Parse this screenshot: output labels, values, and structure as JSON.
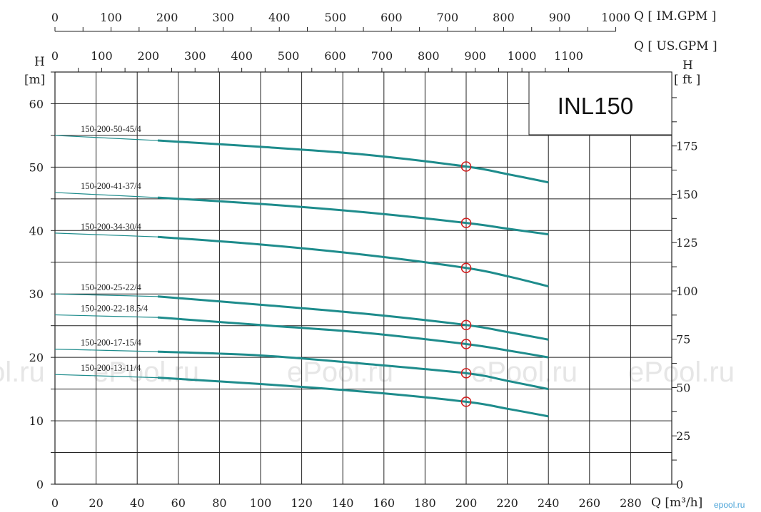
{
  "chart_data": {
    "type": "line",
    "title": "INL150",
    "xlabel": "Q [m³/h]",
    "ylabel_left": "H [m]",
    "ylabel_right": "H [ft]",
    "top_axis_im_label": "Q [ IM.GPM ]",
    "top_axis_us_label": "Q [ US.GPM ]",
    "xlim": [
      0,
      300
    ],
    "ylim": [
      0,
      65
    ],
    "x_ticks": [
      "0",
      "20",
      "40",
      "60",
      "80",
      "100",
      "120",
      "140",
      "160",
      "180",
      "200",
      "220",
      "240",
      "260",
      "280"
    ],
    "y_ticks_m": [
      "0",
      "10",
      "20",
      "30",
      "40",
      "50",
      "60"
    ],
    "y_ticks_ft": [
      "0",
      "25",
      "50",
      "75",
      "100",
      "125",
      "150",
      "175"
    ],
    "top_ticks_im": [
      "0",
      "100",
      "200",
      "300",
      "400",
      "500",
      "600",
      "700",
      "800",
      "900",
      "1000"
    ],
    "top_ticks_us": [
      "0",
      "100",
      "200",
      "300",
      "400",
      "500",
      "600",
      "700",
      "800",
      "900",
      "1000",
      "1100"
    ],
    "grid": true,
    "duty_point_q": 200,
    "series": [
      {
        "name": "150-200-50-45/4",
        "x": [
          0,
          50,
          100,
          150,
          200,
          220,
          240
        ],
        "y": [
          55.0,
          54.2,
          53.2,
          52.0,
          50.1,
          48.9,
          47.6
        ]
      },
      {
        "name": "150-200-41-37/4",
        "x": [
          0,
          50,
          100,
          150,
          200,
          220,
          240
        ],
        "y": [
          46.0,
          45.2,
          44.2,
          42.9,
          41.2,
          40.3,
          39.4
        ]
      },
      {
        "name": "150-200-34-30/4",
        "x": [
          0,
          50,
          100,
          150,
          200,
          220,
          240
        ],
        "y": [
          39.6,
          39.0,
          37.8,
          36.2,
          34.1,
          32.8,
          31.2
        ]
      },
      {
        "name": "150-200-25-22/4",
        "x": [
          0,
          50,
          100,
          150,
          200,
          220,
          240
        ],
        "y": [
          30.0,
          29.6,
          28.3,
          26.9,
          25.1,
          24.0,
          22.8
        ]
      },
      {
        "name": "150-200-22-18.5/4",
        "x": [
          0,
          50,
          100,
          150,
          200,
          220,
          240
        ],
        "y": [
          26.7,
          26.3,
          25.1,
          23.9,
          22.1,
          21.1,
          20.0
        ]
      },
      {
        "name": "150-200-17-15/4",
        "x": [
          0,
          50,
          100,
          150,
          200,
          220,
          240
        ],
        "y": [
          21.3,
          20.9,
          20.3,
          19.0,
          17.5,
          16.3,
          15.0
        ]
      },
      {
        "name": "150-200-13-11/4",
        "x": [
          0,
          50,
          100,
          150,
          200,
          220,
          240
        ],
        "y": [
          17.3,
          16.8,
          15.8,
          14.6,
          13.0,
          11.9,
          10.7
        ]
      }
    ]
  },
  "watermark": "ePool.ru",
  "corner_watermark": "epool.ru",
  "colors": {
    "curve": "#1e8c8c",
    "duty_point": "#d22020",
    "grid": "#222222"
  }
}
